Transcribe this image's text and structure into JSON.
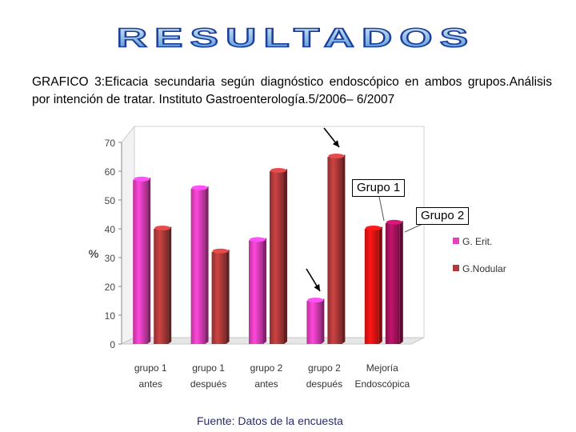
{
  "slide_title": "RESULTADOS",
  "subtitle": "GRAFICO 3:Eficacia secundaria según diagnóstico endoscópico en ambos grupos.Análisis por intención de tratar. Instituto Gastroenterología.5/2006– 6/2007",
  "source": "Fuente: Datos de la encuesta",
  "callouts": {
    "grupo1": "Grupo 1",
    "grupo2": "Grupo 2"
  },
  "colors": {
    "g_erit": "#e83fbf",
    "g_nodular": "#b23a3a",
    "grupo1_bar": "#e81414",
    "grupo2_bar": "#a8125e",
    "title_fill": "#4a8fd6"
  },
  "chart_data": {
    "type": "bar",
    "style": "3d",
    "categories": [
      "grupo 1 antes",
      "grupo 1 después",
      "grupo 2 antes",
      "grupo 2 después",
      "Mejoría Endoscópica"
    ],
    "category_lines": [
      [
        "grupo 1",
        "antes"
      ],
      [
        "grupo 1",
        "después"
      ],
      [
        "grupo 2",
        "antes"
      ],
      [
        "grupo 2",
        "después"
      ],
      [
        "Mejoría",
        "Endoscópica"
      ]
    ],
    "series": [
      {
        "name": "G. Erit.",
        "values": [
          57,
          54,
          36,
          15,
          40
        ]
      },
      {
        "name": "G.Nodular",
        "values": [
          40,
          32,
          60,
          65,
          42
        ]
      }
    ],
    "ylabel": "%",
    "ylim": [
      0,
      70
    ],
    "yticks": [
      0,
      10,
      20,
      30,
      40,
      50,
      60,
      70
    ],
    "legend_position": "right",
    "grid": false
  }
}
